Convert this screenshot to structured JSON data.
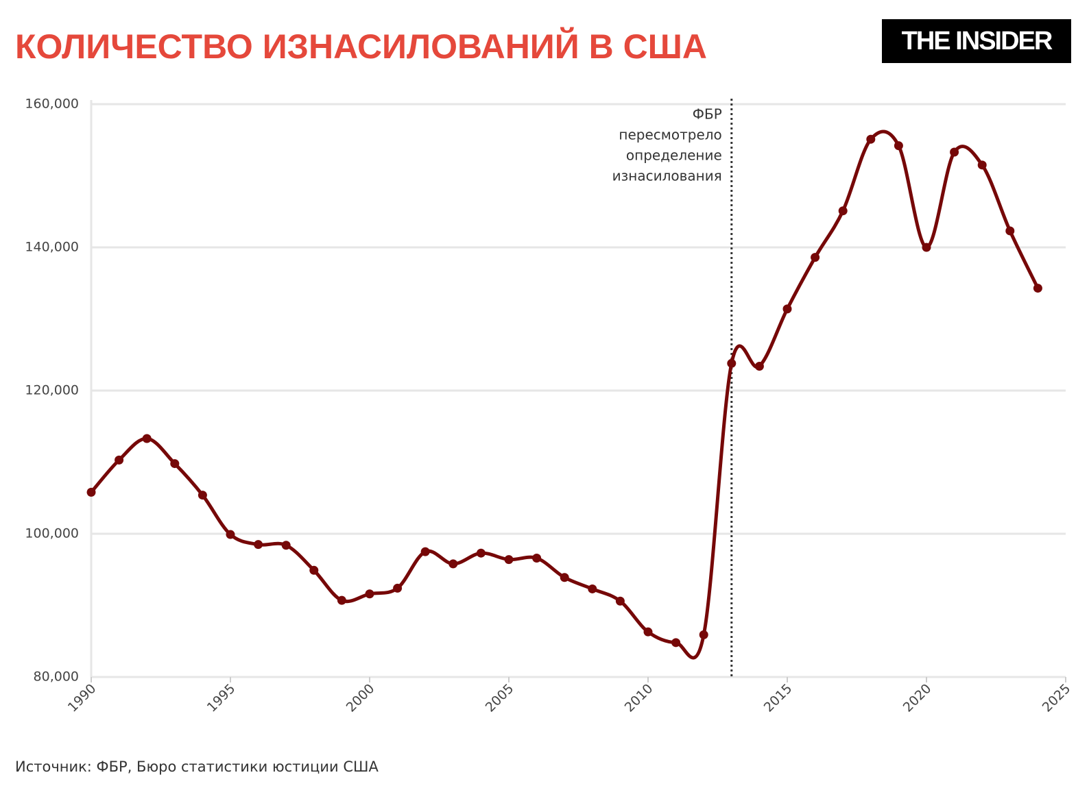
{
  "chart_data": {
    "type": "line",
    "title": "КОЛИЧЕСТВО ИЗНАСИЛОВАНИЙ В США",
    "brand": "THE INSIDER",
    "source": "Источник: ФБР, Бюро статистики юстиции США",
    "x": [
      1990,
      1991,
      1992,
      1993,
      1994,
      1995,
      1996,
      1997,
      1998,
      1999,
      2000,
      2001,
      2002,
      2003,
      2004,
      2005,
      2006,
      2007,
      2008,
      2009,
      2010,
      2011,
      2012,
      2013,
      2014,
      2015,
      2016,
      2017,
      2018,
      2019,
      2020,
      2021,
      2022,
      2023,
      2024
    ],
    "series": [
      {
        "color": "#760808",
        "values": [
          105800,
          110300,
          113300,
          109800,
          105400,
          99900,
          98500,
          98400,
          94900,
          90700,
          91600,
          92400,
          97500,
          95800,
          97300,
          96400,
          96600,
          93900,
          92300,
          90600,
          86300,
          84800,
          85900,
          123800,
          123400,
          131400,
          138600,
          145100,
          155100,
          154200,
          140000,
          153300,
          151500,
          142300,
          134300
        ]
      }
    ],
    "xlim": [
      1990,
      2025
    ],
    "xticks": [
      1990,
      1995,
      2000,
      2005,
      2010,
      2015,
      2020,
      2025
    ],
    "ylim": [
      80000,
      160000
    ],
    "yticks": [
      {
        "value": 80000,
        "label": "80,000"
      },
      {
        "value": 100000,
        "label": "100,000"
      },
      {
        "value": 120000,
        "label": "120,000"
      },
      {
        "value": 140000,
        "label": "140,000"
      },
      {
        "value": 160000,
        "label": "160,000"
      }
    ],
    "grid": true,
    "annotation": {
      "x": 2013,
      "lines": [
        "ФБР",
        "пересмотрело",
        "определение",
        "изнасилования"
      ]
    }
  }
}
